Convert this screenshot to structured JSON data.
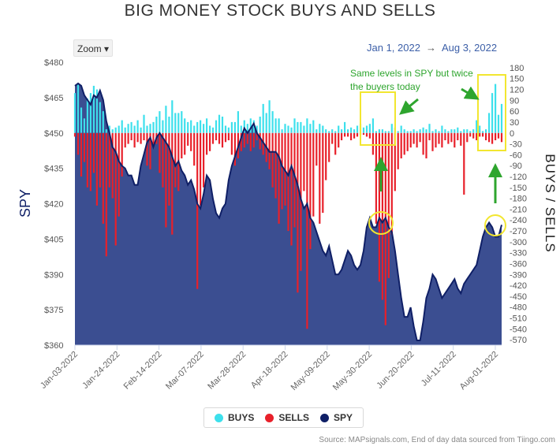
{
  "title": "BIG MONEY STOCK BUYS AND SELLS",
  "zoom_label": "Zoom ▾",
  "range": {
    "from": "Jan 1, 2022",
    "to": "Aug 3, 2022",
    "arrow": "→"
  },
  "source": "Source: MAPsignals.com, End of day data sourced from Tiingo.com",
  "colors": {
    "buys": "#3de0ec",
    "sells": "#e8202a",
    "spy": "#0f1f66",
    "spy_fill": "#3b4e91",
    "annotation": "#2ea52e",
    "highlight": "#f2e630"
  },
  "chart_data": {
    "type": "bar",
    "title": "BIG MONEY STOCK BUYS AND SELLS",
    "x_ticks": [
      "Jan-03-2022",
      "Jan-24-2022",
      "Feb-14-2022",
      "Mar-07-2022",
      "Mar-28-2022",
      "Apr-18-2022",
      "May-09-2022",
      "May-30-2022",
      "Jun-20-2022",
      "Jul-11-2022",
      "Aug-01-2022"
    ],
    "left_axis": {
      "label": "SPY",
      "ticks": [
        "$480",
        "$465",
        "$450",
        "$435",
        "$420",
        "$405",
        "$390",
        "$375",
        "$360"
      ],
      "range": [
        360,
        480
      ]
    },
    "right_axis": {
      "label": "BUYS / SELLS",
      "ticks": [
        "180",
        "150",
        "120",
        "90",
        "60",
        "30",
        "0",
        "-30",
        "-60",
        "-90",
        "-120",
        "-150",
        "-180",
        "-210",
        "-240",
        "-270",
        "-300",
        "-330",
        "-360",
        "-390",
        "-420",
        "-450",
        "-480",
        "-510",
        "-540",
        "-570"
      ],
      "range": [
        -585,
        195
      ]
    },
    "series": [
      {
        "name": "BUYS",
        "kind": "bar",
        "values": [
          110,
          135,
          70,
          40,
          95,
          110,
          130,
          120,
          85,
          60,
          10,
          20,
          10,
          15,
          20,
          35,
          15,
          25,
          30,
          20,
          35,
          15,
          50,
          20,
          25,
          30,
          45,
          60,
          35,
          75,
          45,
          90,
          55,
          55,
          60,
          40,
          30,
          35,
          20,
          30,
          35,
          25,
          40,
          20,
          15,
          35,
          50,
          45,
          20,
          15,
          30,
          30,
          60,
          20,
          35,
          25,
          40,
          35,
          20,
          45,
          80,
          55,
          90,
          60,
          40,
          40,
          10,
          25,
          20,
          15,
          40,
          30,
          30,
          20,
          40,
          25,
          35,
          10,
          25,
          20,
          10,
          5,
          10,
          5,
          20,
          10,
          30,
          10,
          15,
          10,
          20,
          25,
          15,
          20,
          25,
          40,
          5,
          10,
          10,
          5,
          5,
          25,
          15,
          5,
          20,
          10,
          5,
          5,
          10,
          5,
          10,
          15,
          10,
          25,
          5,
          10,
          5,
          20,
          10,
          5,
          10,
          10,
          15,
          5,
          10,
          10,
          5,
          10,
          35,
          20,
          5,
          10,
          55,
          110,
          135,
          50,
          80
        ]
      },
      {
        "name": "SELLS",
        "kind": "bar",
        "values": [
          -10,
          -60,
          -120,
          -80,
          -150,
          -160,
          -110,
          -200,
          -150,
          -250,
          -340,
          -150,
          -180,
          -310,
          -230,
          -120,
          -40,
          -30,
          -20,
          -40,
          -25,
          -30,
          -20,
          -90,
          -100,
          -40,
          -30,
          -110,
          -150,
          -260,
          -200,
          -280,
          -150,
          -160,
          -70,
          -60,
          -35,
          -50,
          -90,
          -430,
          -200,
          -150,
          -60,
          -50,
          -30,
          -20,
          -30,
          -40,
          -25,
          -20,
          -60,
          -90,
          -70,
          -50,
          -40,
          -30,
          -50,
          -40,
          -20,
          -45,
          -60,
          -80,
          -100,
          -150,
          -180,
          -250,
          -210,
          -200,
          -270,
          -310,
          -260,
          -440,
          -380,
          -160,
          -540,
          -320,
          -230,
          -90,
          -250,
          -220,
          -130,
          -80,
          -30,
          -60,
          -40,
          -20,
          -10,
          -10,
          -20,
          -15,
          -10,
          -5,
          -5,
          -10,
          -15,
          -60,
          -250,
          -410,
          -460,
          -530,
          -400,
          -280,
          -160,
          -100,
          -70,
          -60,
          -50,
          -40,
          -30,
          -40,
          -25,
          -60,
          -70,
          -20,
          -50,
          -40,
          -30,
          -40,
          -20,
          -30,
          -25,
          -40,
          -20,
          -35,
          -170,
          -25,
          -10,
          -15,
          -20,
          -10,
          -10,
          -20,
          -25,
          -30,
          -20,
          -15,
          -25
        ]
      },
      {
        "name": "SPY",
        "kind": "line",
        "values": [
          470,
          471,
          470,
          466,
          464,
          462,
          466,
          465,
          468,
          464,
          455,
          450,
          444,
          442,
          438,
          436,
          435,
          432,
          432,
          428,
          428,
          436,
          441,
          446,
          448,
          444,
          448,
          450,
          448,
          446,
          444,
          440,
          436,
          438,
          434,
          432,
          428,
          430,
          426,
          420,
          418,
          424,
          432,
          430,
          422,
          416,
          414,
          418,
          420,
          430,
          436,
          440,
          444,
          448,
          452,
          450,
          452,
          454,
          450,
          448,
          446,
          444,
          442,
          442,
          442,
          440,
          436,
          434,
          432,
          436,
          432,
          428,
          422,
          418,
          420,
          414,
          412,
          408,
          404,
          400,
          398,
          402,
          396,
          390,
          390,
          392,
          396,
          400,
          398,
          394,
          392,
          394,
          400,
          410,
          414,
          410,
          410,
          414,
          412,
          414,
          410,
          408,
          400,
          390,
          380,
          372,
          372,
          376,
          368,
          362,
          362,
          370,
          380,
          384,
          390,
          388,
          384,
          380,
          382,
          384,
          386,
          388,
          384,
          382,
          386,
          388,
          390,
          392,
          394,
          400,
          406,
          410,
          412,
          410,
          406,
          406,
          411
        ]
      }
    ],
    "legend": [
      "BUYS",
      "SELLS",
      "SPY"
    ],
    "legend_position": "bottom",
    "annotations": [
      {
        "text": "Same levels in SPY but twice"
      },
      {
        "text": "the buyers today"
      }
    ],
    "grid": false
  }
}
